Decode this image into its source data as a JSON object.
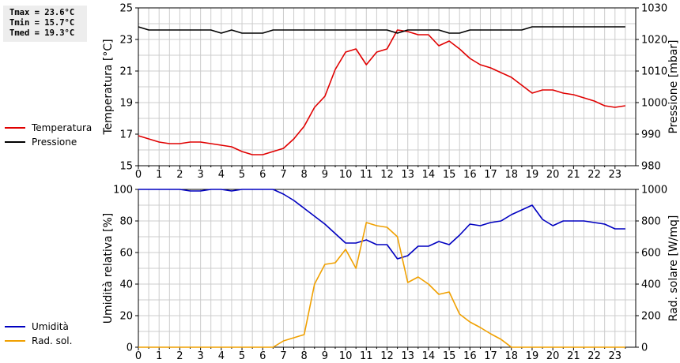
{
  "stats": {
    "tmax": "Tmax = 23.6°C",
    "tmin": "Tmin = 15.7°C",
    "tmed": "Tmed = 19.3°C"
  },
  "colors": {
    "temperature": "#e00000",
    "pressure": "#000000",
    "humidity": "#0000c0",
    "radiation": "#f0a000",
    "grid": "#cccccc"
  },
  "legend_top": [
    {
      "label": "Temperatura",
      "color": "#e00000"
    },
    {
      "label": "Pressione",
      "color": "#000000"
    }
  ],
  "legend_bottom": [
    {
      "label": "Umidità",
      "color": "#0000c0"
    },
    {
      "label": "Rad. sol.",
      "color": "#f0a000"
    }
  ],
  "chart_data": [
    {
      "type": "line",
      "ylabel": "Temperatura [°C]",
      "y2label": "Pressione [mbar]",
      "xlim": [
        0,
        24
      ],
      "ylim": [
        15,
        25
      ],
      "y2lim": [
        980,
        1030
      ],
      "xticks": [
        "0",
        "1",
        "2",
        "3",
        "4",
        "5",
        "6",
        "7",
        "8",
        "9",
        "10",
        "11",
        "12",
        "13",
        "14",
        "15",
        "16",
        "17",
        "18",
        "19",
        "20",
        "21",
        "22",
        "23"
      ],
      "yticks": [
        "15",
        "17",
        "19",
        "21",
        "23",
        "25"
      ],
      "y2ticks": [
        "980",
        "990",
        "1000",
        "1010",
        "1020",
        "1030"
      ],
      "grid": true,
      "series": [
        {
          "name": "Temperatura",
          "axis": "left",
          "x": [
            0,
            0.5,
            1,
            1.5,
            2,
            2.5,
            3,
            3.5,
            4,
            4.5,
            5,
            5.5,
            6,
            6.5,
            7,
            7.5,
            8,
            8.5,
            9,
            9.5,
            10,
            10.5,
            11,
            11.5,
            12,
            12.5,
            13,
            13.5,
            14,
            14.5,
            15,
            15.5,
            16,
            16.5,
            17,
            17.5,
            18,
            18.5,
            19,
            19.5,
            20,
            20.5,
            21,
            21.5,
            22,
            22.5,
            23,
            23.5
          ],
          "values": [
            16.9,
            16.7,
            16.5,
            16.4,
            16.4,
            16.5,
            16.5,
            16.4,
            16.3,
            16.2,
            15.9,
            15.7,
            15.7,
            15.9,
            16.1,
            16.7,
            17.5,
            18.7,
            19.4,
            21.1,
            22.2,
            22.4,
            21.4,
            22.2,
            22.4,
            23.6,
            23.5,
            23.3,
            23.3,
            22.6,
            22.9,
            22.4,
            21.8,
            21.4,
            21.2,
            20.9,
            20.6,
            20.1,
            19.6,
            19.8,
            19.8,
            19.6,
            19.5,
            19.3,
            19.1,
            18.8,
            18.7,
            18.8
          ]
        },
        {
          "name": "Pressione",
          "axis": "right",
          "x": [
            0,
            0.5,
            1,
            1.5,
            2,
            2.5,
            3,
            3.5,
            4,
            4.5,
            5,
            5.5,
            6,
            6.5,
            7,
            7.5,
            8,
            8.5,
            9,
            9.5,
            10,
            10.5,
            11,
            11.5,
            12,
            12.5,
            13,
            13.5,
            14,
            14.5,
            15,
            15.5,
            16,
            16.5,
            17,
            17.5,
            18,
            18.5,
            19,
            19.5,
            20,
            20.5,
            21,
            21.5,
            22,
            22.5,
            23,
            23.5
          ],
          "values": [
            1024,
            1023,
            1023,
            1023,
            1023,
            1023,
            1023,
            1023,
            1022,
            1023,
            1022,
            1022,
            1022,
            1023,
            1023,
            1023,
            1023,
            1023,
            1023,
            1023,
            1023,
            1023,
            1023,
            1023,
            1023,
            1022,
            1023,
            1023,
            1023,
            1023,
            1022,
            1022,
            1023,
            1023,
            1023,
            1023,
            1023,
            1023,
            1024,
            1024,
            1024,
            1024,
            1024,
            1024,
            1024,
            1024,
            1024,
            1024
          ]
        }
      ]
    },
    {
      "type": "line",
      "ylabel": "Umidità relativa [%]",
      "y2label": "Rad. solare [W/mq]",
      "xlim": [
        0,
        24
      ],
      "ylim": [
        0,
        100
      ],
      "y2lim": [
        0,
        1000
      ],
      "xticks": [
        "0",
        "1",
        "2",
        "3",
        "4",
        "5",
        "6",
        "7",
        "8",
        "9",
        "10",
        "11",
        "12",
        "13",
        "14",
        "15",
        "16",
        "17",
        "18",
        "19",
        "20",
        "21",
        "22",
        "23"
      ],
      "yticks": [
        "0",
        "20",
        "40",
        "60",
        "80",
        "100"
      ],
      "y2ticks": [
        "0",
        "200",
        "400",
        "600",
        "800",
        "1000"
      ],
      "grid": true,
      "series": [
        {
          "name": "Umidità",
          "axis": "left",
          "x": [
            0,
            0.5,
            1,
            1.5,
            2,
            2.5,
            3,
            3.5,
            4,
            4.5,
            5,
            5.5,
            6,
            6.5,
            7,
            7.5,
            8,
            8.5,
            9,
            9.5,
            10,
            10.5,
            11,
            11.5,
            12,
            12.5,
            13,
            13.5,
            14,
            14.5,
            15,
            15.5,
            16,
            16.5,
            17,
            17.5,
            18,
            18.5,
            19,
            19.5,
            20,
            20.5,
            21,
            21.5,
            22,
            22.5,
            23,
            23.5
          ],
          "values": [
            100,
            100,
            100,
            100,
            100,
            99,
            99,
            100,
            100,
            99,
            100,
            100,
            100,
            100,
            97,
            93,
            88,
            83,
            78,
            72,
            66,
            66,
            68,
            65,
            65,
            56,
            58,
            64,
            64,
            67,
            65,
            71,
            78,
            77,
            79,
            80,
            84,
            87,
            90,
            81,
            77,
            80,
            80,
            80,
            79,
            78,
            75,
            75
          ]
        },
        {
          "name": "Rad. sol.",
          "axis": "right",
          "x": [
            0,
            0.5,
            1,
            1.5,
            2,
            2.5,
            3,
            3.5,
            4,
            4.5,
            5,
            5.5,
            6,
            6.5,
            7,
            7.5,
            8,
            8.5,
            9,
            9.5,
            10,
            10.5,
            11,
            11.5,
            12,
            12.5,
            13,
            13.5,
            14,
            14.5,
            15,
            15.5,
            16,
            16.5,
            17,
            17.5,
            18,
            18.5,
            19,
            19.5,
            20,
            20.5,
            21,
            21.5,
            22,
            22.5,
            23,
            23.5
          ],
          "values": [
            0,
            0,
            0,
            0,
            0,
            0,
            0,
            0,
            0,
            0,
            0,
            0,
            0,
            0,
            40,
            60,
            80,
            400,
            525,
            535,
            620,
            500,
            790,
            770,
            760,
            700,
            410,
            445,
            400,
            335,
            350,
            210,
            160,
            125,
            85,
            50,
            0,
            0,
            0,
            0,
            0,
            0,
            0,
            0,
            0,
            0,
            0,
            0
          ]
        }
      ]
    }
  ]
}
